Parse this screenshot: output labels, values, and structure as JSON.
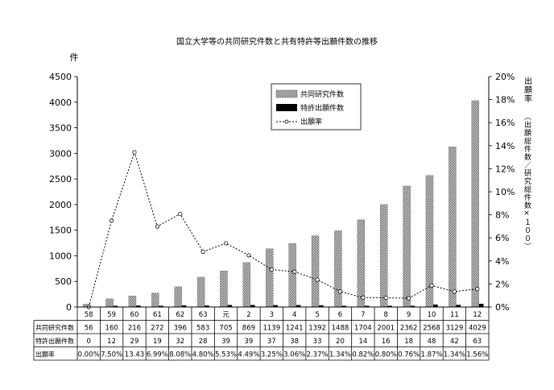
{
  "chart_data": {
    "type": "bar",
    "title": "国立大学等の共同研究件数と共有特許等出願件数の推移",
    "ylabel": "件",
    "y2label": "出願率",
    "y2sublabel": "（出願総件数／研究総件数×１００）",
    "ylim": [
      0,
      4500
    ],
    "yticks": [
      0,
      500,
      1000,
      1500,
      2000,
      2500,
      3000,
      3500,
      4000,
      4500
    ],
    "y2lim": [
      0,
      20
    ],
    "y2ticks": [
      "0%",
      "2%",
      "4%",
      "6%",
      "8%",
      "10%",
      "12%",
      "14%",
      "16%",
      "18%",
      "20%"
    ],
    "grid": false,
    "legend_position": "top-center",
    "categories": [
      "58",
      "59",
      "60",
      "61",
      "62",
      "63",
      "元",
      "2",
      "3",
      "4",
      "5",
      "6",
      "7",
      "8",
      "9",
      "10",
      "11",
      "12"
    ],
    "series": [
      {
        "name": "共同研究件数",
        "kind": "bar",
        "axis": "left",
        "values": [
          56,
          160,
          216,
          272,
          396,
          583,
          705,
          869,
          1139,
          1241,
          1392,
          1488,
          1704,
          2001,
          2362,
          2568,
          3129,
          4029
        ]
      },
      {
        "name": "特許出願件数",
        "kind": "bar",
        "axis": "left",
        "values": [
          0,
          12,
          29,
          19,
          32,
          28,
          39,
          39,
          37,
          38,
          33,
          20,
          14,
          16,
          18,
          48,
          42,
          63
        ]
      },
      {
        "name": "出願率",
        "kind": "line",
        "axis": "right",
        "values": [
          0.0,
          7.5,
          13.43,
          6.99,
          8.08,
          4.8,
          5.53,
          4.49,
          3.25,
          3.06,
          2.37,
          1.34,
          0.82,
          0.8,
          0.76,
          1.87,
          1.34,
          1.56
        ]
      }
    ],
    "table": {
      "rows": [
        {
          "label": "共同研究件数",
          "values": [
            "56",
            "160",
            "216",
            "272",
            "396",
            "583",
            "705",
            "869",
            "1139",
            "1241",
            "1392",
            "1488",
            "1704",
            "2001",
            "2362",
            "2568",
            "3129",
            "4029"
          ]
        },
        {
          "label": "特許出願件数",
          "values": [
            "0",
            "12",
            "29",
            "19",
            "32",
            "28",
            "39",
            "39",
            "37",
            "38",
            "33",
            "20",
            "14",
            "16",
            "18",
            "48",
            "42",
            "63"
          ]
        },
        {
          "label": "出願率",
          "values": [
            "0.00%",
            "7.50%",
            "13.43",
            "6.99%",
            "8.08%",
            "4.80%",
            "5.53%",
            "4.49%",
            "3.25%",
            "3.06%",
            "2.37%",
            "1.34%",
            "0.82%",
            "0.80%",
            "0.76%",
            "1.87%",
            "1.34%",
            "1.56%"
          ]
        }
      ]
    },
    "colors": {
      "bar1_fill": "#b8b8b8",
      "bar1_hatch": "#6a6a6a",
      "bar2_fill": "#000000",
      "line": "#000000"
    }
  }
}
